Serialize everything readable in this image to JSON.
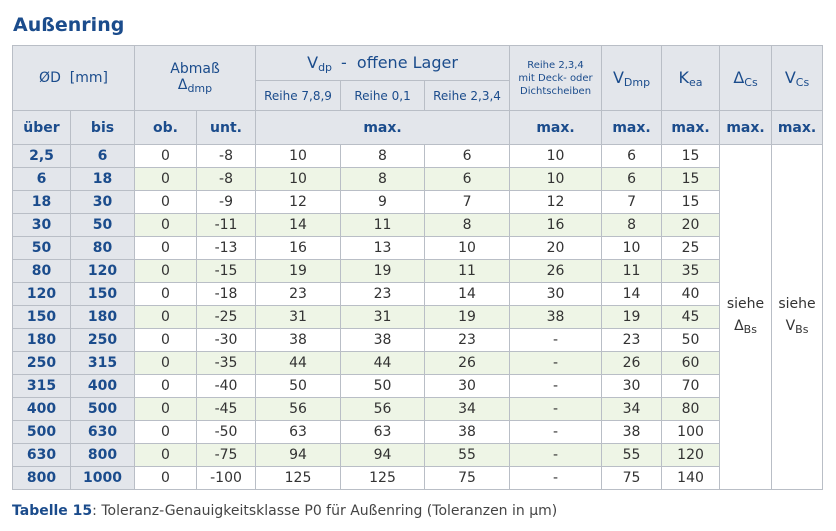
{
  "title": "Außenring",
  "header": {
    "d": {
      "symbol": "ØD",
      "unit": "[mm]"
    },
    "abmass": {
      "label": "Abmaß",
      "symbol": "Δ",
      "sub": "dmp"
    },
    "vdp": {
      "symbol": "V",
      "sub": "dp",
      "label": "-  offene Lager"
    },
    "reihe789": "Reihe 7,8,9",
    "reihe01": "Reihe 0,1",
    "reihe234": "Reihe 2,3,4",
    "reihe_sealed": [
      "Reihe 2,3,4",
      "mit Deck- oder",
      "Dichtscheiben"
    ],
    "vdmp": {
      "symbol": "V",
      "sub": "Dmp"
    },
    "kea": {
      "symbol": "K",
      "sub": "ea"
    },
    "dcs": {
      "symbol": "Δ",
      "sub": "Cs"
    },
    "vcs": {
      "symbol": "V",
      "sub": "Cs"
    }
  },
  "subheader": [
    "über",
    "bis",
    "ob.",
    "unt.",
    "max.",
    "max.",
    "max.",
    "max.",
    "max.",
    "max."
  ],
  "rows": [
    [
      "2,5",
      6,
      0,
      -8,
      10,
      8,
      6,
      10,
      6,
      15
    ],
    [
      6,
      18,
      0,
      -8,
      10,
      8,
      6,
      10,
      6,
      15
    ],
    [
      18,
      30,
      0,
      -9,
      12,
      9,
      7,
      12,
      7,
      15
    ],
    [
      30,
      50,
      0,
      -11,
      14,
      11,
      8,
      16,
      8,
      20
    ],
    [
      50,
      80,
      0,
      -13,
      16,
      13,
      10,
      20,
      10,
      25
    ],
    [
      80,
      120,
      0,
      -15,
      19,
      19,
      11,
      26,
      11,
      35
    ],
    [
      120,
      150,
      0,
      -18,
      23,
      23,
      14,
      30,
      14,
      40
    ],
    [
      150,
      180,
      0,
      -25,
      31,
      31,
      19,
      38,
      19,
      45
    ],
    [
      180,
      250,
      0,
      -30,
      38,
      38,
      23,
      "-",
      23,
      50
    ],
    [
      250,
      315,
      0,
      -35,
      44,
      44,
      26,
      "-",
      26,
      60
    ],
    [
      315,
      400,
      0,
      -40,
      50,
      50,
      30,
      "-",
      30,
      70
    ],
    [
      400,
      500,
      0,
      -45,
      56,
      56,
      34,
      "-",
      34,
      80
    ],
    [
      500,
      630,
      0,
      -50,
      63,
      63,
      38,
      "-",
      38,
      100
    ],
    [
      630,
      800,
      0,
      -75,
      94,
      94,
      55,
      "-",
      55,
      120
    ],
    [
      800,
      1000,
      0,
      -100,
      125,
      125,
      75,
      "-",
      75,
      140
    ]
  ],
  "siehe_dcs": {
    "text": "siehe",
    "symbol": "Δ",
    "sub": "Bs"
  },
  "siehe_vcs": {
    "text": "siehe",
    "symbol": "V",
    "sub": "Bs"
  },
  "caption": {
    "label": "Tabelle 15",
    "text": ": Toleranz-Genauigkeitsklasse P0 für Außenring (Toleranzen in µm)"
  }
}
